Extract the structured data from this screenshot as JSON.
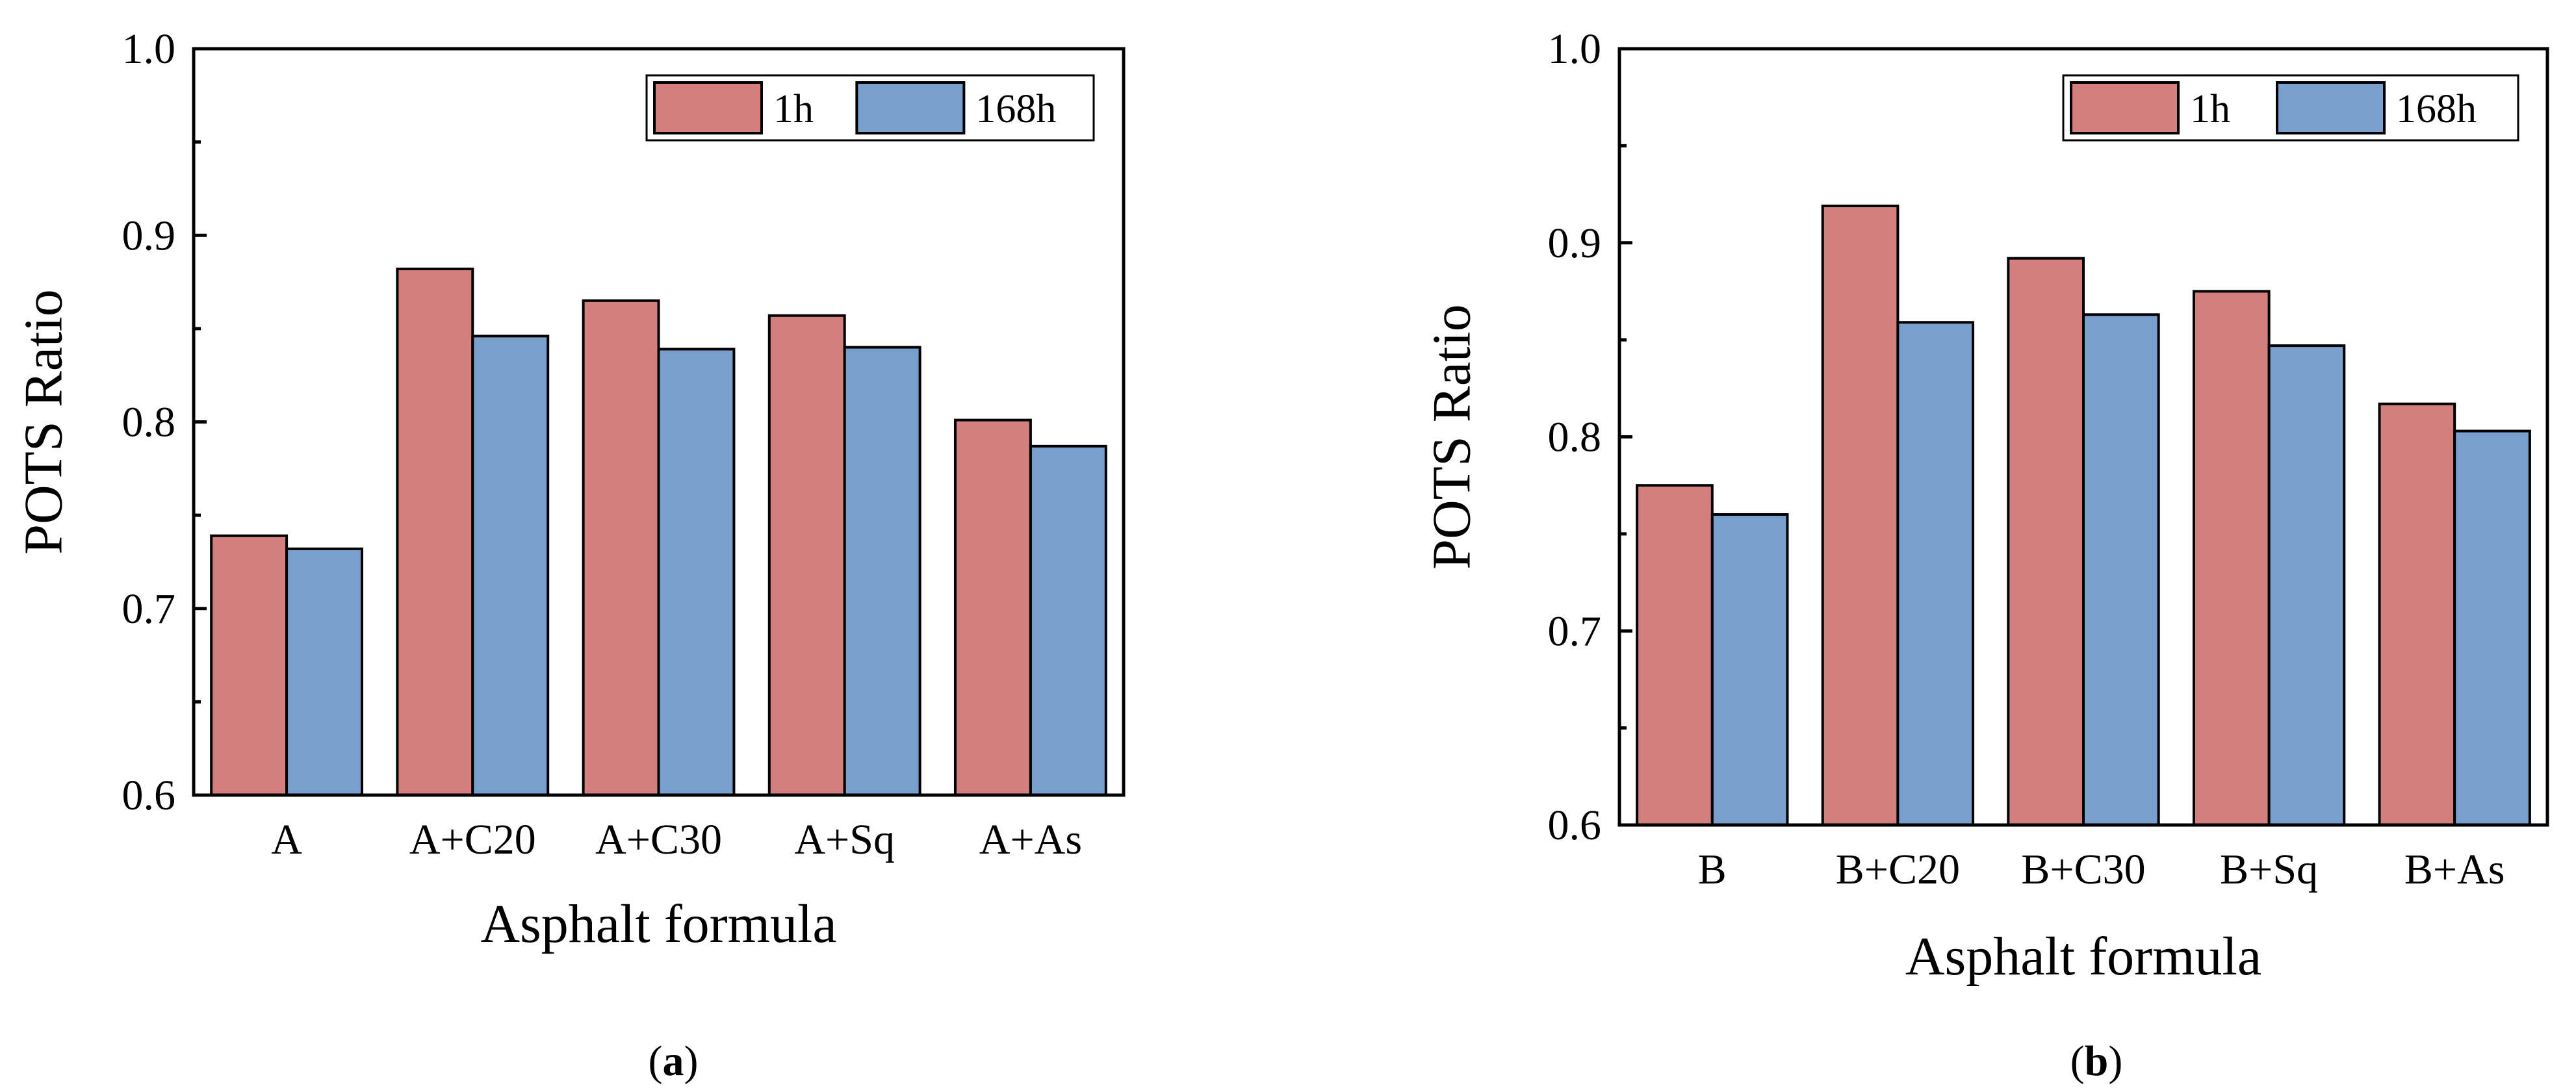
{
  "colors": {
    "series_1h": "#D27F7E",
    "series_168h": "#789FCD",
    "axis": "#000000",
    "bar_stroke": "#000000"
  },
  "chart_data": [
    {
      "panel": "a",
      "type": "bar",
      "categories": [
        "A",
        "A+C20",
        "A+C30",
        "A+Sq",
        "A+As"
      ],
      "series": [
        {
          "name": "1h",
          "values": [
            0.739,
            0.882,
            0.865,
            0.857,
            0.801
          ]
        },
        {
          "name": "168h",
          "values": [
            0.732,
            0.846,
            0.839,
            0.84,
            0.787
          ]
        }
      ],
      "title": "",
      "xlabel": "Asphalt formula",
      "ylabel": "POTS Ratio",
      "ylim": [
        0.6,
        1.0
      ],
      "yticks": [
        "0.6",
        "0.7",
        "0.8",
        "0.9",
        "1.0"
      ],
      "ytick_values": [
        0.6,
        0.7,
        0.8,
        0.9,
        1.0
      ],
      "grid": false,
      "legend": "top-right"
    },
    {
      "panel": "b",
      "type": "bar",
      "categories": [
        "B",
        "B+C20",
        "B+C30",
        "B+Sq",
        "B+As"
      ],
      "series": [
        {
          "name": "1h",
          "values": [
            0.775,
            0.919,
            0.892,
            0.875,
            0.817
          ]
        },
        {
          "name": "168h",
          "values": [
            0.76,
            0.859,
            0.863,
            0.847,
            0.803
          ]
        }
      ],
      "title": "",
      "xlabel": "Asphalt formula",
      "ylabel": "POTS Ratio",
      "ylim": [
        0.6,
        1.0
      ],
      "yticks": [
        "0.6",
        "0.7",
        "0.8",
        "0.9",
        "1.0"
      ],
      "ytick_values": [
        0.6,
        0.7,
        0.8,
        0.9,
        1.0
      ],
      "grid": false,
      "legend": "top-right"
    }
  ],
  "captions": [
    {
      "open": "(",
      "letter": "a",
      "close": ")"
    },
    {
      "open": "(",
      "letter": "b",
      "close": ")"
    }
  ]
}
